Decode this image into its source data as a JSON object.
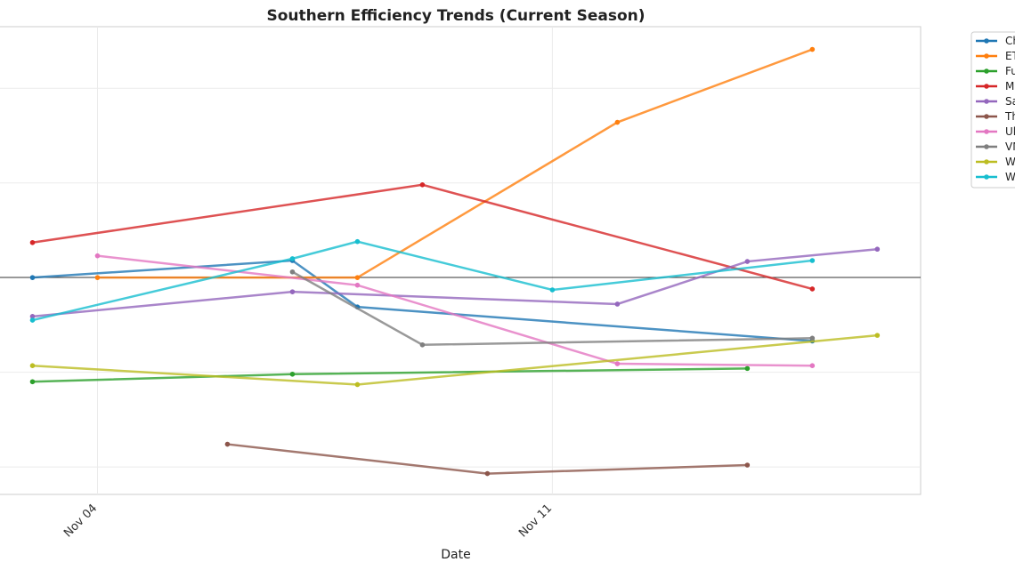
{
  "chart_data": {
    "type": "line",
    "title": "Southern Efficiency Trends (Current Season)",
    "xlabel": "Date",
    "ylabel": "",
    "x_ticks": [
      "Nov 04",
      "Nov 11"
    ],
    "xlim": [
      "2023-11-02T12:00",
      "2023-11-16T16:00"
    ],
    "ylim": [
      -2.29,
      2.65
    ],
    "reference_line": 0,
    "grid": true,
    "legend_position": "right-outside",
    "series": [
      {
        "name": "Ch",
        "color": "#1f77b4",
        "x": [
          "11-03",
          "11-07",
          "11-08",
          "11-15"
        ],
        "y": [
          0,
          0.18,
          -0.31,
          -0.67
        ]
      },
      {
        "name": "ET",
        "color": "#ff7f0e",
        "x": [
          "11-04",
          "11-08",
          "11-12",
          "11-15"
        ],
        "y": [
          0,
          0,
          1.64,
          2.41
        ]
      },
      {
        "name": "Fu",
        "color": "#2ca02c",
        "x": [
          "11-03",
          "11-07",
          "11-14"
        ],
        "y": [
          -1.1,
          -1.02,
          -0.96
        ]
      },
      {
        "name": "M",
        "color": "#d62728",
        "x": [
          "11-03",
          "11-09",
          "11-15"
        ],
        "y": [
          0.37,
          0.98,
          -0.12
        ]
      },
      {
        "name": "Sa",
        "color": "#9467bd",
        "x": [
          "11-03",
          "11-07",
          "11-12",
          "11-14",
          "11-16"
        ],
        "y": [
          -0.41,
          -0.15,
          -0.28,
          0.17,
          0.3
        ]
      },
      {
        "name": "Th",
        "color": "#8c564b",
        "x": [
          "11-06",
          "11-10",
          "11-14"
        ],
        "y": [
          -1.76,
          -2.07,
          -1.98
        ]
      },
      {
        "name": "Ul",
        "color": "#e377c2",
        "x": [
          "11-04",
          "11-08",
          "11-12",
          "11-15"
        ],
        "y": [
          0.23,
          -0.08,
          -0.91,
          -0.93
        ]
      },
      {
        "name": "VM",
        "color": "#7f7f7f",
        "x": [
          "11-07",
          "11-09",
          "11-15"
        ],
        "y": [
          0.06,
          -0.71,
          -0.64
        ]
      },
      {
        "name": "W",
        "color": "#bcbd22",
        "x": [
          "11-03",
          "11-08",
          "11-16"
        ],
        "y": [
          -0.93,
          -1.13,
          -0.61
        ]
      },
      {
        "name": "W",
        "color": "#17becf",
        "x": [
          "11-03",
          "11-07",
          "11-08",
          "11-11",
          "11-15"
        ],
        "y": [
          -0.45,
          0.2,
          0.38,
          -0.13,
          0.18
        ]
      }
    ]
  }
}
